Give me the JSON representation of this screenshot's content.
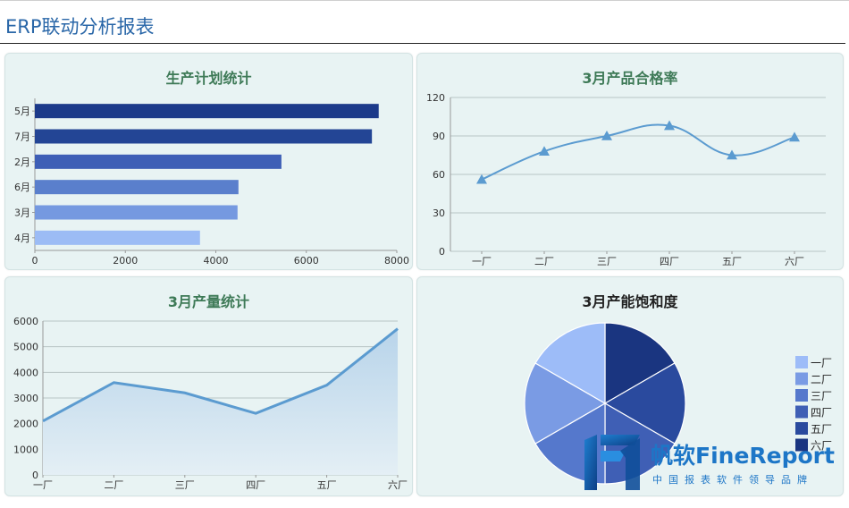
{
  "page": {
    "title": "ERP联动分析报表"
  },
  "logo": {
    "brand": "帆软FineReport",
    "tagline": "中国报表软件领导品牌"
  },
  "chart_data": [
    {
      "id": "production-plan",
      "type": "bar",
      "orientation": "horizontal",
      "title": "生产计划统计",
      "categories": [
        "5月",
        "7月",
        "2月",
        "6月",
        "3月",
        "4月"
      ],
      "values": [
        7600,
        7450,
        5450,
        4500,
        4480,
        3650
      ],
      "colors": [
        "#1c3a8a",
        "#234595",
        "#3e5fb6",
        "#5a7fcc",
        "#7599e0",
        "#9cbcf5"
      ],
      "xlim": [
        0,
        8000
      ],
      "xticks": [
        0,
        2000,
        4000,
        6000,
        8000
      ],
      "grid": false
    },
    {
      "id": "pass-rate",
      "type": "line",
      "title": "3月产品合格率",
      "categories": [
        "一厂",
        "二厂",
        "三厂",
        "四厂",
        "五厂",
        "六厂"
      ],
      "values": [
        56,
        78,
        90,
        98,
        75,
        89
      ],
      "ylim": [
        0,
        120
      ],
      "yticks": [
        0,
        30,
        60,
        90,
        120
      ],
      "marker": "triangle",
      "smooth": true,
      "color": "#5b9bd0",
      "grid": true
    },
    {
      "id": "output",
      "type": "area",
      "title": "3月产量统计",
      "categories": [
        "一厂",
        "二厂",
        "三厂",
        "四厂",
        "五厂",
        "六厂"
      ],
      "values": [
        2100,
        3600,
        3200,
        2400,
        3500,
        5700
      ],
      "ylim": [
        0,
        6000
      ],
      "yticks": [
        0,
        1000,
        2000,
        3000,
        4000,
        5000,
        6000
      ],
      "color": "#5b9bd0",
      "fill": "#b8d4ea",
      "grid": true
    },
    {
      "id": "capacity",
      "type": "pie",
      "title": "3月产能饱和度",
      "categories": [
        "一厂",
        "二厂",
        "三厂",
        "四厂",
        "五厂",
        "六厂"
      ],
      "values": [
        1,
        1,
        1,
        1,
        1,
        1
      ],
      "colors": [
        "#9dbcf8",
        "#7a9be4",
        "#5578cc",
        "#3f5fb5",
        "#2a4a9e",
        "#1a3580"
      ],
      "legend": "right"
    }
  ]
}
